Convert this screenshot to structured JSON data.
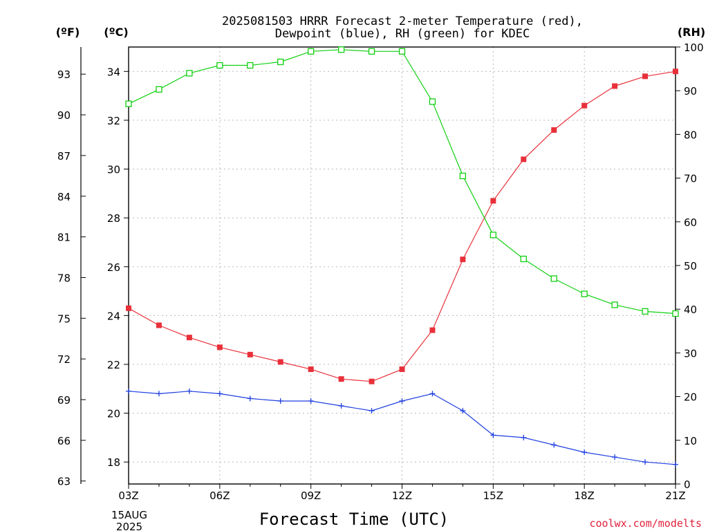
{
  "chart_data": {
    "type": "line",
    "title_line1": "2025081503 HRRR Forecast 2-meter Temperature (red),",
    "title_line2": "Dewpoint (blue), RH (green) for KDEC",
    "xlabel": "Forecast Time (UTC)",
    "credit": "coolwx.com/modelts",
    "unit_f": "(ºF)",
    "unit_c": "(ºC)",
    "unit_rh": "(RH)",
    "x_ticks": [
      "03Z",
      "06Z",
      "09Z",
      "12Z",
      "15Z",
      "18Z",
      "21Z"
    ],
    "x_first_date": "15AUG",
    "x_first_year": "2025",
    "x": [
      "03Z",
      "04Z",
      "05Z",
      "06Z",
      "07Z",
      "08Z",
      "09Z",
      "10Z",
      "11Z",
      "12Z",
      "13Z",
      "14Z",
      "15Z",
      "16Z",
      "17Z",
      "18Z",
      "19Z",
      "20Z",
      "21Z"
    ],
    "ylim_c": [
      17.1,
      35
    ],
    "yticks_c": [
      18,
      20,
      22,
      24,
      26,
      28,
      30,
      32,
      34
    ],
    "yticks_f": [
      63,
      66,
      69,
      72,
      75,
      78,
      81,
      84,
      87,
      90,
      93
    ],
    "ylim_rh": [
      0,
      100
    ],
    "yticks_rh": [
      0,
      10,
      20,
      30,
      40,
      50,
      60,
      70,
      80,
      90,
      100
    ],
    "grid": true,
    "series": [
      {
        "name": "Temperature",
        "axis": "c",
        "color": "#e8303a",
        "marker": "filled-square",
        "values": [
          24.3,
          23.6,
          23.1,
          22.7,
          22.4,
          22.1,
          21.8,
          21.4,
          21.3,
          21.8,
          23.4,
          26.3,
          28.7,
          30.4,
          31.6,
          32.6,
          33.4,
          33.8,
          34.0
        ]
      },
      {
        "name": "Dewpoint",
        "axis": "c",
        "color": "#1f3fe0",
        "marker": "plus",
        "values": [
          20.9,
          20.8,
          20.9,
          20.8,
          20.6,
          20.5,
          20.5,
          20.3,
          20.1,
          20.5,
          20.8,
          20.1,
          19.1,
          19.0,
          18.7,
          18.4,
          18.2,
          18.0,
          17.9
        ]
      },
      {
        "name": "RH",
        "axis": "rh",
        "color": "#10d010",
        "marker": "open-square",
        "values": [
          87,
          90.3,
          94,
          95.8,
          95.8,
          96.6,
          99,
          99.4,
          99,
          99,
          87.5,
          70.5,
          57,
          51.5,
          47,
          43.5,
          41,
          39.5,
          39
        ]
      }
    ]
  }
}
